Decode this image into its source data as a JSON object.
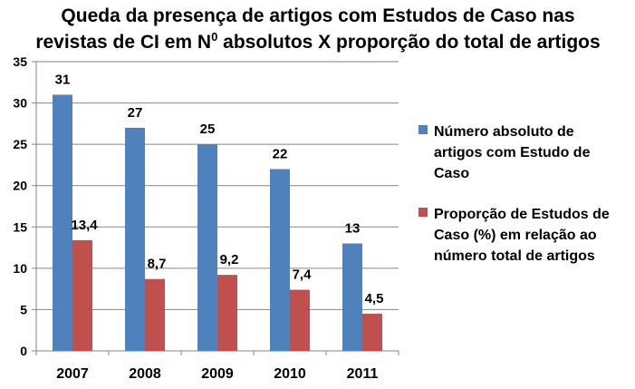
{
  "chart_data": {
    "type": "bar",
    "title_lines": [
      "Queda da presença de artigos com Estudos de Caso nas",
      "revistas de CI em N",
      " absolutos X proporção do total de artigos"
    ],
    "title_superscript": "0",
    "categories": [
      "2007",
      "2008",
      "2009",
      "2010",
      "2011"
    ],
    "series": [
      {
        "name": "Número absoluto de artigos com Estudo de Caso",
        "legend_lines": [
          "Número absoluto de",
          "artigos com Estudo de",
          "Caso"
        ],
        "values": [
          31,
          27,
          25,
          22,
          13
        ],
        "labels": [
          "31",
          "27",
          "25",
          "22",
          "13"
        ],
        "color": "#4F81BD"
      },
      {
        "name": "Proporção de Estudos de Caso (%) em relação ao número total de artigos",
        "legend_lines": [
          "Proporção de Estudos de",
          "Caso (%) em relação ao",
          "número total de artigos"
        ],
        "values": [
          13.4,
          8.7,
          9.2,
          7.4,
          4.5
        ],
        "labels": [
          "13,4",
          "8,7",
          "9,2",
          "7,4",
          "4,5"
        ],
        "color": "#C0504D"
      }
    ],
    "ylim": [
      0,
      35
    ],
    "yticks": [
      "0",
      "5",
      "10",
      "15",
      "20",
      "25",
      "30",
      "35"
    ],
    "grid": true,
    "legend_position": "right"
  }
}
